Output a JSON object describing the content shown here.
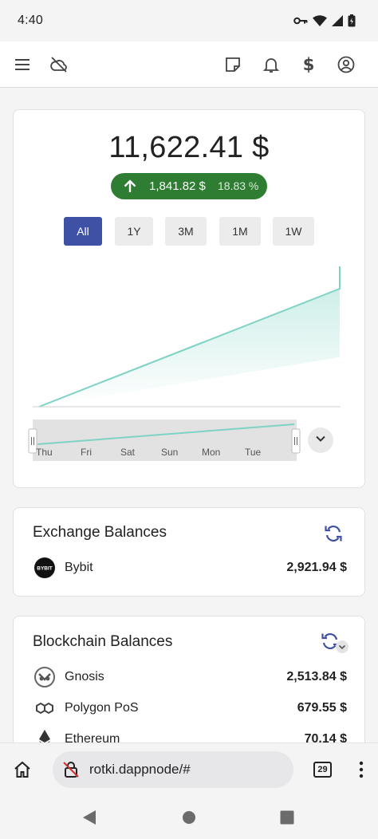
{
  "status_bar": {
    "time": "4:40"
  },
  "app_bar": {
    "icons": [
      "menu-icon",
      "cloud-off-icon",
      "notes-icon",
      "bell-icon",
      "dollar-icon",
      "account-icon"
    ]
  },
  "total": {
    "amount": "11,622.41 $",
    "change_value": "1,841.82 $",
    "change_percent": "18.83 %",
    "change_direction": "up",
    "pill_color": "#2e7d32"
  },
  "range_buttons": [
    {
      "label": "All",
      "active": true
    },
    {
      "label": "1Y",
      "active": false
    },
    {
      "label": "3M",
      "active": false
    },
    {
      "label": "1M",
      "active": false
    },
    {
      "label": "1W",
      "active": false
    }
  ],
  "chart": {
    "line_color": "#7fd3c4",
    "navigator_days": [
      "Thu",
      "Fri",
      "Sat",
      "Sun",
      "Mon",
      "Tue"
    ]
  },
  "exchange_balances": {
    "title": "Exchange Balances",
    "rows": [
      {
        "name": "Bybit",
        "amount": "2,921.94 $",
        "logo_text": "BYBIT"
      }
    ]
  },
  "blockchain_balances": {
    "title": "Blockchain Balances",
    "rows": [
      {
        "name": "Gnosis",
        "amount": "2,513.84 $"
      },
      {
        "name": "Polygon PoS",
        "amount": "679.55 $"
      },
      {
        "name": "Ethereum",
        "amount": "70.14 $"
      }
    ]
  },
  "browser": {
    "url": "rotki.dappnode/#",
    "tab_count": "29"
  },
  "accent_color": "#3f51a4"
}
